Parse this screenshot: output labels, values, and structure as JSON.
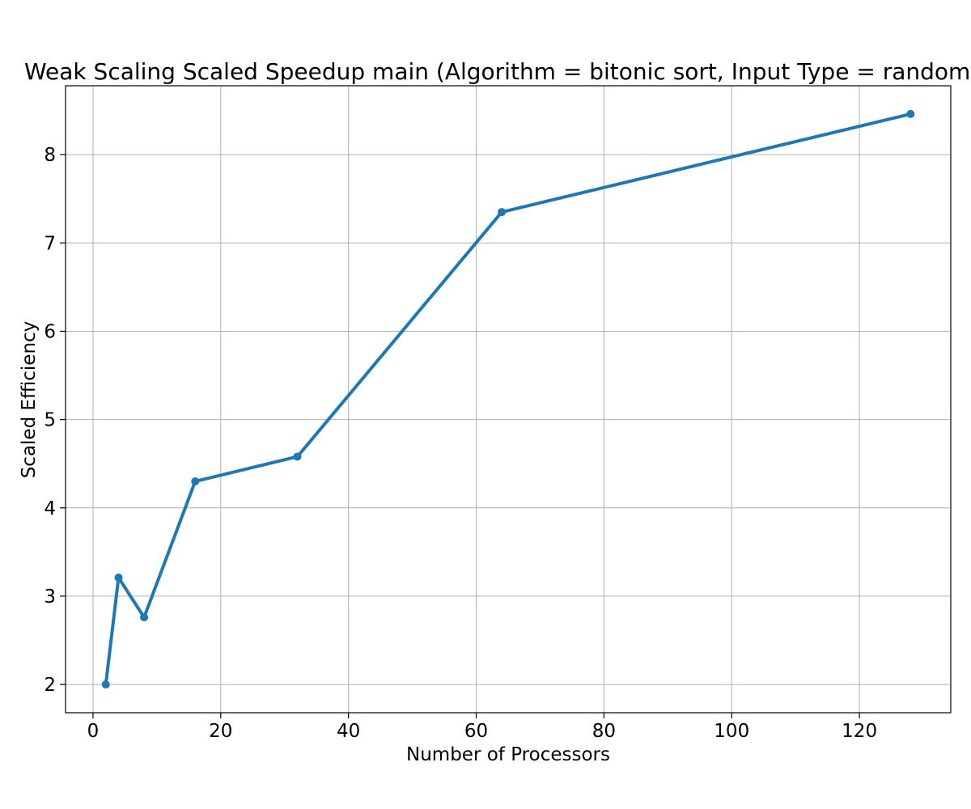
{
  "colors": {
    "series": "#1f77b4"
  },
  "chart_data": {
    "type": "line",
    "title": "Weak Scaling Scaled Speedup main (Algorithm = bitonic sort, Input Type = random)",
    "xlabel": "Number of Processors",
    "ylabel": "Scaled Efficiency",
    "xlim": [
      -4.3,
      134.3
    ],
    "ylim": [
      1.68,
      8.78
    ],
    "xticks": [
      0,
      20,
      40,
      60,
      80,
      100,
      120
    ],
    "yticks": [
      2,
      3,
      4,
      5,
      6,
      7,
      8
    ],
    "grid": true,
    "marker": "circle",
    "series": [
      {
        "x": [
          2,
          4,
          8,
          16,
          32,
          64,
          128
        ],
        "y": [
          2.0,
          3.21,
          2.76,
          4.3,
          4.58,
          7.35,
          8.46
        ]
      }
    ]
  }
}
